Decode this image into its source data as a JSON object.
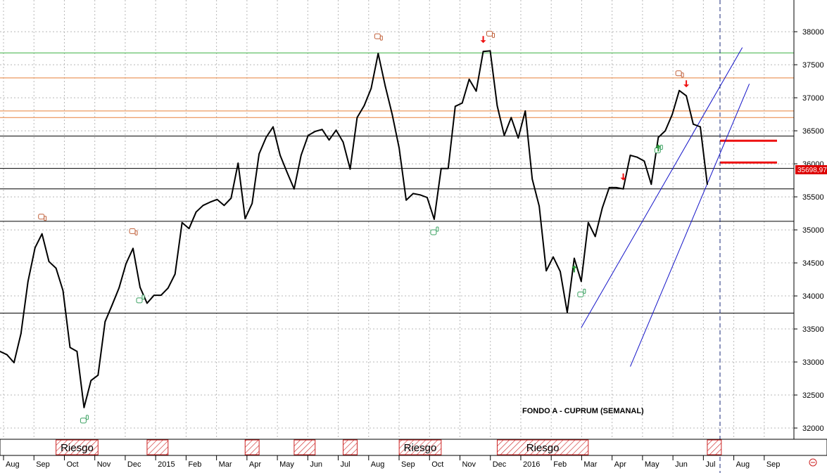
{
  "chart_data": {
    "type": "line",
    "title": "FONDO A - CUPRUM (SEMANAL)",
    "y_ticks": [
      32000,
      32500,
      33000,
      33500,
      34000,
      34500,
      35000,
      35500,
      36000,
      36500,
      37000,
      37500,
      38000
    ],
    "ylim": [
      31830,
      38480
    ],
    "grid": true,
    "last_value_label": "35698,97",
    "x_month_labels": [
      "Aug",
      "Sep",
      "Oct",
      "Nov",
      "Dec",
      "2015",
      "Feb",
      "Mar",
      "Apr",
      "May",
      "Jun",
      "Jul",
      "Aug",
      "Sep",
      "Oct",
      "Nov",
      "Dec",
      "2016",
      "Feb",
      "Mar",
      "Apr",
      "May",
      "Jun",
      "Jul",
      "Aug",
      "Sep"
    ],
    "series": [
      {
        "values": [
          33160,
          33110,
          32990,
          33430,
          34220,
          34730,
          34940,
          34520,
          34420,
          34080,
          33220,
          33160,
          32310,
          32720,
          32800,
          33610,
          33860,
          34120,
          34490,
          34720,
          34130,
          33890,
          34010,
          34010,
          34120,
          34330,
          35110,
          35020,
          35270,
          35370,
          35420,
          35460,
          35370,
          35480,
          36010,
          35170,
          35400,
          36150,
          36400,
          36560,
          36130,
          35870,
          35620,
          36130,
          36430,
          36490,
          36520,
          36360,
          36510,
          36330,
          35920,
          36700,
          36880,
          37140,
          37670,
          37180,
          36750,
          36240,
          35450,
          35550,
          35530,
          35490,
          35160,
          35930,
          35930,
          36870,
          36920,
          37280,
          37100,
          37700,
          37710,
          36880,
          36430,
          36700,
          36390,
          36800,
          35770,
          35360,
          34380,
          34590,
          34370,
          33750,
          34570,
          34220,
          35110,
          34900,
          35330,
          35640,
          35640,
          35620,
          36130,
          36100,
          36040,
          35690,
          36400,
          36500,
          36750,
          37110,
          37030,
          36600,
          36560,
          35690
        ]
      }
    ],
    "horizontal_levels": {
      "green": [
        37680
      ],
      "orange": [
        37300,
        36800,
        36700
      ],
      "black": [
        36420,
        35930,
        35620,
        35130,
        33740
      ]
    },
    "channel_lines": {
      "upper": [
        [
          83,
          33520
        ],
        [
          106,
          37760
        ]
      ],
      "lower": [
        [
          90,
          32930
        ],
        [
          107,
          37210
        ]
      ]
    },
    "projection_levels": [
      36350,
      36020
    ],
    "markers": {
      "thumb_down": [
        6,
        19,
        54,
        70,
        97
      ],
      "thumb_up": [
        12,
        20,
        62,
        83,
        94
      ],
      "arrow_down": [
        69,
        89,
        98
      ],
      "arrow_up": [
        82,
        94
      ]
    },
    "risk_bands": [
      {
        "label": "Riesgo",
        "from": 8,
        "to": 14
      },
      {
        "label": "",
        "from": 21,
        "to": 24
      },
      {
        "label": "",
        "from": 35,
        "to": 37
      },
      {
        "label": "",
        "from": 42,
        "to": 45
      },
      {
        "label": "",
        "from": 49,
        "to": 51
      },
      {
        "label": "Riesgo",
        "from": 57,
        "to": 63
      },
      {
        "label": "Riesgo",
        "from": 71,
        "to": 84
      },
      {
        "label": "",
        "from": 101,
        "to": 103
      }
    ],
    "colors": {
      "price_line": "#000000",
      "channel": "#1515c8",
      "green_level": "#3cb043",
      "orange_level": "#e8813a",
      "projection": "#ee1111",
      "arrow": "#ee1111",
      "thumb_down": "#c0603a",
      "thumb_up": "#3aa060",
      "last_label_bg": "#dd0000"
    }
  }
}
